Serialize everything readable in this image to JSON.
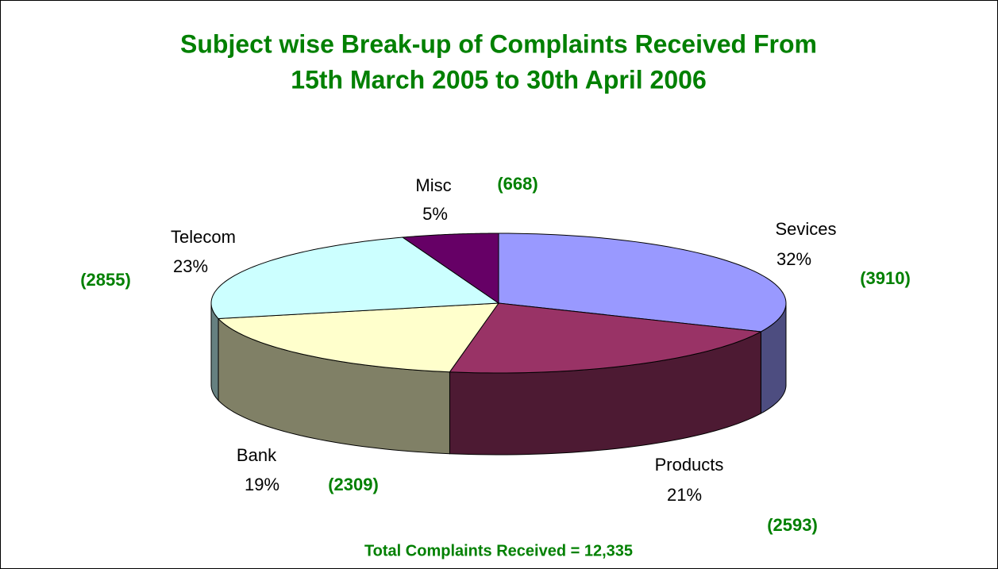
{
  "chart_data": {
    "type": "pie",
    "title": [
      "Subject wise Break-up of Complaints Received From",
      "15th March 2005 to 30th April 2006"
    ],
    "categories": [
      "Sevices",
      "Products",
      "Bank",
      "Telecom",
      "Misc"
    ],
    "values": [
      3910,
      2593,
      2309,
      2855,
      668
    ],
    "value_labels": [
      "(3910)",
      "(2593)",
      "(2309)",
      "(2855)",
      "(668)"
    ],
    "percent_labels": [
      "32%",
      "21%",
      "19%",
      "23%",
      "5%"
    ],
    "colors": [
      "#9999ff",
      "#993366",
      "#ffffcc",
      "#ccffff",
      "#660066"
    ],
    "side_colors": [
      "#4d4d80",
      "#4d1a33",
      "#808066",
      "#668080",
      "#330033"
    ],
    "footer": "Total Complaints Received = 12,335"
  }
}
